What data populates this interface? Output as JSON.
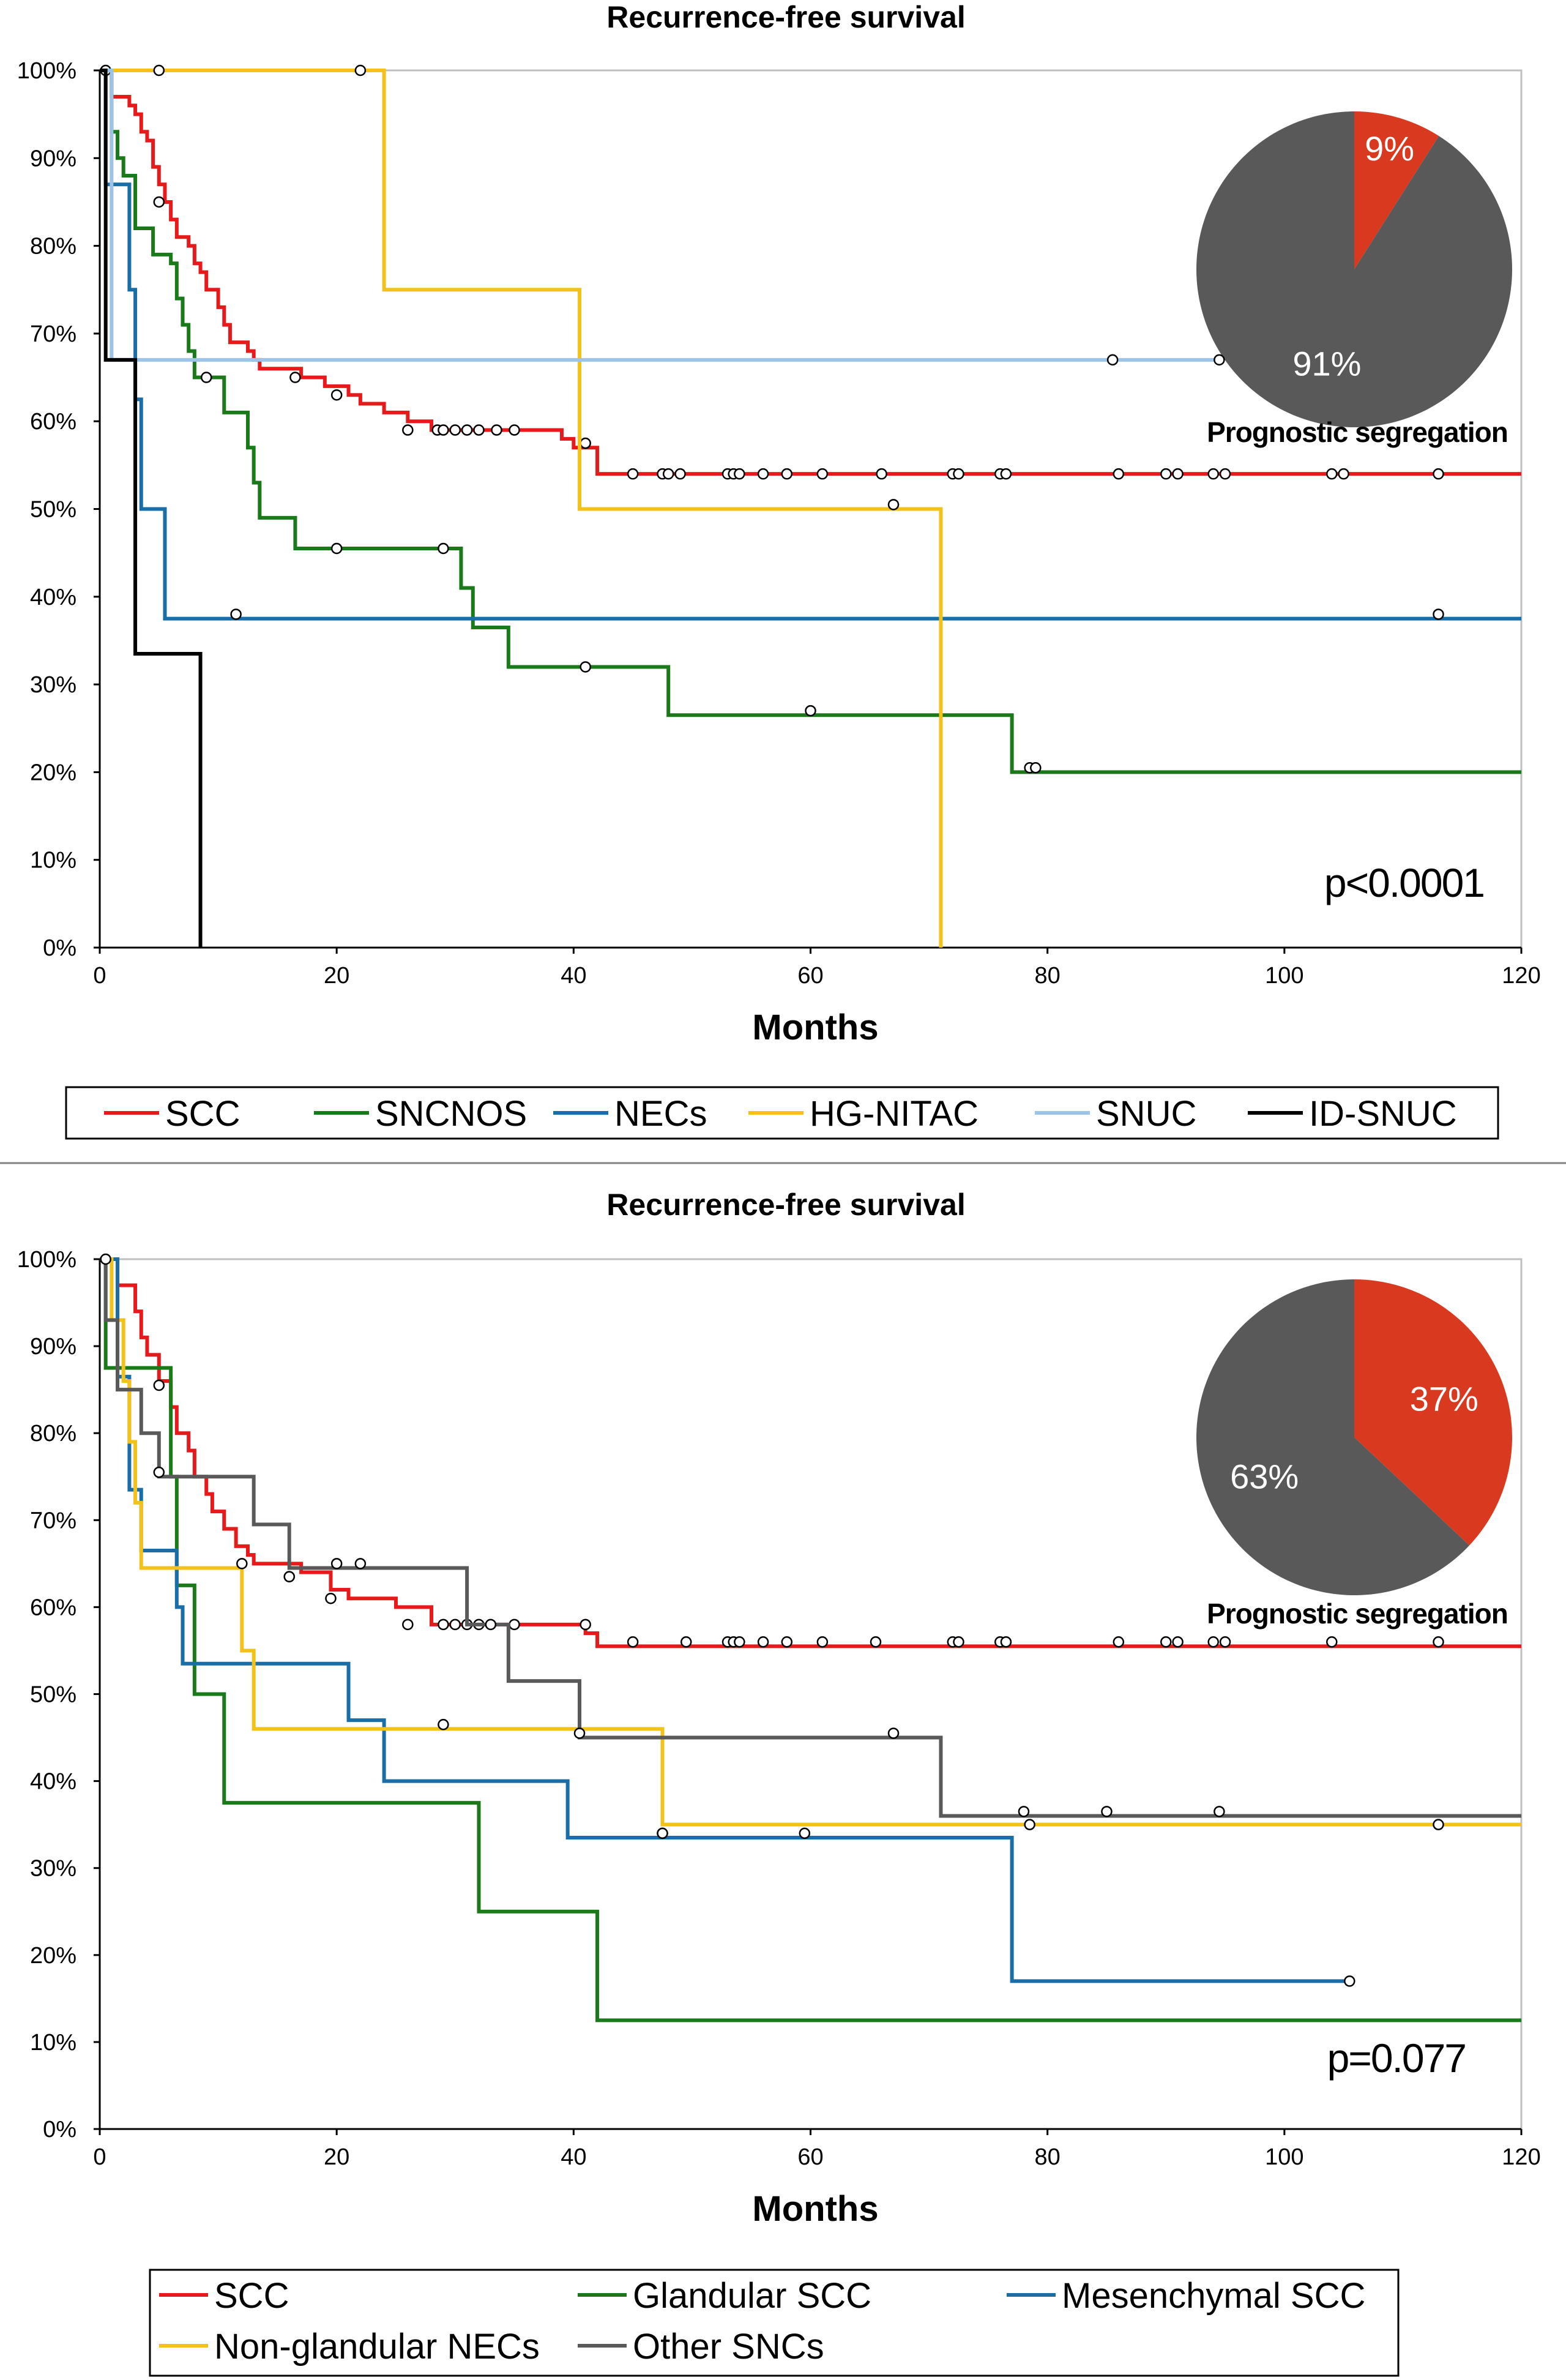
{
  "chart_data": [
    {
      "type": "line",
      "subtype": "kaplan-meier step",
      "title": "Recurrence-free survival",
      "xlabel": "Months",
      "ylabel": "",
      "xlim": [
        0,
        120
      ],
      "ylim": [
        0,
        100
      ],
      "x_ticks": [
        0,
        20,
        40,
        60,
        80,
        100,
        120
      ],
      "y_ticks": [
        "0%",
        "10%",
        "20%",
        "30%",
        "40%",
        "50%",
        "60%",
        "70%",
        "80%",
        "90%",
        "100%"
      ],
      "p_value": "p<0.0001",
      "pie": {
        "caption": "Prognostic segregation",
        "slices": [
          {
            "label": "9%",
            "value": 9,
            "color": "#d9391f"
          },
          {
            "label": "91%",
            "value": 91,
            "color": "#595959"
          }
        ]
      },
      "legend": [
        "SCC",
        "SNCNOS",
        "NECs",
        "HG-NITAC",
        "SNUC",
        "ID-SNUC"
      ],
      "series": [
        {
          "name": "SCC",
          "color": "#e8191b",
          "steps": [
            [
              0,
              100
            ],
            [
              1,
              97
            ],
            [
              2.5,
              96
            ],
            [
              3,
              95
            ],
            [
              3.5,
              93
            ],
            [
              4,
              92
            ],
            [
              4.5,
              89
            ],
            [
              5,
              87
            ],
            [
              5.5,
              85
            ],
            [
              6,
              83
            ],
            [
              6.5,
              81
            ],
            [
              7.5,
              80
            ],
            [
              8,
              78
            ],
            [
              8.5,
              77
            ],
            [
              9,
              75
            ],
            [
              10,
              73
            ],
            [
              10.5,
              71
            ],
            [
              11,
              69
            ],
            [
              12.5,
              68
            ],
            [
              13,
              67
            ],
            [
              13.5,
              66
            ],
            [
              17,
              65
            ],
            [
              19,
              64
            ],
            [
              21,
              63
            ],
            [
              22,
              62
            ],
            [
              24,
              61
            ],
            [
              26,
              60
            ],
            [
              28,
              59
            ],
            [
              39,
              58
            ],
            [
              40,
              57
            ],
            [
              42,
              54
            ],
            [
              120,
              54
            ]
          ],
          "censor": [
            [
              5,
              85
            ],
            [
              16.5,
              65
            ],
            [
              20,
              63
            ],
            [
              26,
              59
            ],
            [
              28.5,
              59
            ],
            [
              29,
              59
            ],
            [
              30,
              59
            ],
            [
              31,
              59
            ],
            [
              32,
              59
            ],
            [
              33.5,
              59
            ],
            [
              35,
              59
            ],
            [
              41,
              57.5
            ],
            [
              45,
              54
            ],
            [
              47.5,
              54
            ],
            [
              48,
              54
            ],
            [
              49,
              54
            ],
            [
              53,
              54
            ],
            [
              53.5,
              54
            ],
            [
              54,
              54
            ],
            [
              56,
              54
            ],
            [
              58,
              54
            ],
            [
              61,
              54
            ],
            [
              66,
              54
            ],
            [
              72,
              54
            ],
            [
              72.5,
              54
            ],
            [
              76,
              54
            ],
            [
              76.5,
              54
            ],
            [
              86,
              54
            ],
            [
              90,
              54
            ],
            [
              91,
              54
            ],
            [
              94,
              54
            ],
            [
              95,
              54
            ],
            [
              104,
              54
            ],
            [
              105,
              54
            ],
            [
              113,
              54
            ]
          ]
        },
        {
          "name": "SNCNOS",
          "color": "#1a7a1a",
          "steps": [
            [
              0,
              100
            ],
            [
              1,
              93
            ],
            [
              1.5,
              90
            ],
            [
              2,
              88
            ],
            [
              3,
              82
            ],
            [
              4.5,
              79
            ],
            [
              6,
              78
            ],
            [
              6.5,
              74
            ],
            [
              7,
              71
            ],
            [
              7.5,
              68
            ],
            [
              8,
              65
            ],
            [
              10.5,
              61
            ],
            [
              12.5,
              57
            ],
            [
              13,
              53
            ],
            [
              13.5,
              49
            ],
            [
              16.5,
              45.5
            ],
            [
              30.5,
              41
            ],
            [
              31.5,
              36.5
            ],
            [
              34.5,
              32
            ],
            [
              48,
              26.5
            ],
            [
              77,
              20
            ],
            [
              120,
              20
            ]
          ],
          "censor": [
            [
              9,
              65
            ],
            [
              20,
              45.5
            ],
            [
              29,
              45.5
            ],
            [
              41,
              32
            ],
            [
              60,
              27
            ],
            [
              78.5,
              20.5
            ],
            [
              79,
              20.5
            ]
          ]
        },
        {
          "name": "NECs",
          "color": "#1a6ea8",
          "steps": [
            [
              0,
              100
            ],
            [
              0.5,
              87
            ],
            [
              2,
              87
            ],
            [
              2.5,
              75
            ],
            [
              3,
              62.5
            ],
            [
              3.5,
              50
            ],
            [
              5.5,
              37.5
            ],
            [
              120,
              37.5
            ]
          ],
          "censor": [
            [
              11.5,
              38
            ],
            [
              113,
              38
            ]
          ]
        },
        {
          "name": "HG-NITAC",
          "color": "#f2c21b",
          "steps": [
            [
              0,
              100
            ],
            [
              24,
              75
            ],
            [
              40.5,
              50
            ],
            [
              71,
              0
            ]
          ],
          "censor": [
            [
              0.5,
              100
            ],
            [
              5,
              100
            ],
            [
              22,
              100
            ],
            [
              67,
              50.5
            ]
          ]
        },
        {
          "name": "SNUC",
          "color": "#9dc3e6",
          "steps": [
            [
              0,
              100
            ],
            [
              1,
              67
            ],
            [
              94.5,
              67
            ]
          ],
          "censor": [
            [
              85.5,
              67
            ],
            [
              94.5,
              67
            ]
          ]
        },
        {
          "name": "ID-SNUC",
          "color": "#000000",
          "steps": [
            [
              0,
              100
            ],
            [
              0.5,
              67
            ],
            [
              3,
              33.5
            ],
            [
              8.5,
              0
            ]
          ],
          "censor": []
        }
      ]
    },
    {
      "type": "line",
      "subtype": "kaplan-meier step",
      "title": "Recurrence-free survival",
      "xlabel": "Months",
      "ylabel": "",
      "xlim": [
        0,
        120
      ],
      "ylim": [
        0,
        100
      ],
      "x_ticks": [
        0,
        20,
        40,
        60,
        80,
        100,
        120
      ],
      "y_ticks": [
        "0%",
        "10%",
        "20%",
        "30%",
        "40%",
        "50%",
        "60%",
        "70%",
        "80%",
        "90%",
        "100%"
      ],
      "p_value": "p=0.077",
      "pie": {
        "caption": "Prognostic segregation",
        "slices": [
          {
            "label": "37%",
            "value": 37,
            "color": "#d9391f"
          },
          {
            "label": "63%",
            "value": 63,
            "color": "#595959"
          }
        ]
      },
      "legend": [
        "SCC",
        "Glandular SCC",
        "Mesenchymal SCC",
        "Non-glandular NECs",
        "Other SNCs"
      ],
      "series": [
        {
          "name": "SCC",
          "color": "#e8191b",
          "steps": [
            [
              0,
              100
            ],
            [
              1.5,
              97
            ],
            [
              3,
              94
            ],
            [
              3.5,
              91
            ],
            [
              4,
              89
            ],
            [
              5,
              86
            ],
            [
              6,
              83
            ],
            [
              6.5,
              80
            ],
            [
              7.5,
              78
            ],
            [
              8,
              75
            ],
            [
              9,
              73
            ],
            [
              9.5,
              71
            ],
            [
              10.5,
              69
            ],
            [
              11.5,
              67
            ],
            [
              12.5,
              66
            ],
            [
              13,
              65
            ],
            [
              17,
              64
            ],
            [
              19.5,
              62
            ],
            [
              21,
              61
            ],
            [
              25,
              60
            ],
            [
              28,
              58
            ],
            [
              41,
              57
            ],
            [
              42,
              55.5
            ],
            [
              120,
              55.5
            ]
          ],
          "censor": [
            [
              5,
              85.5
            ],
            [
              16,
              63.5
            ],
            [
              19.5,
              61
            ],
            [
              26,
              58
            ],
            [
              29,
              58
            ],
            [
              30,
              58
            ],
            [
              31,
              58
            ],
            [
              32,
              58
            ],
            [
              35,
              58
            ],
            [
              41,
              58
            ],
            [
              45,
              56
            ],
            [
              49.5,
              56
            ],
            [
              53,
              56
            ],
            [
              53.5,
              56
            ],
            [
              54,
              56
            ],
            [
              56,
              56
            ],
            [
              58,
              56
            ],
            [
              61,
              56
            ],
            [
              65.5,
              56
            ],
            [
              72,
              56
            ],
            [
              72.5,
              56
            ],
            [
              76,
              56
            ],
            [
              76.5,
              56
            ],
            [
              86,
              56
            ],
            [
              90,
              56
            ],
            [
              91,
              56
            ],
            [
              94,
              56
            ],
            [
              95,
              56
            ],
            [
              104,
              56
            ],
            [
              113,
              56
            ]
          ]
        },
        {
          "name": "Glandular SCC",
          "color": "#1a7a1a",
          "steps": [
            [
              0,
              100
            ],
            [
              0.5,
              87.5
            ],
            [
              6,
              75
            ],
            [
              6.5,
              62.5
            ],
            [
              8,
              50
            ],
            [
              10.5,
              37.5
            ],
            [
              32,
              25
            ],
            [
              42,
              12.5
            ],
            [
              120,
              12.5
            ]
          ],
          "censor": []
        },
        {
          "name": "Mesenchymal SCC",
          "color": "#1a6ea8",
          "steps": [
            [
              0,
              100
            ],
            [
              1.5,
              86.5
            ],
            [
              2.5,
              73.5
            ],
            [
              3.5,
              66.5
            ],
            [
              6.5,
              60
            ],
            [
              7,
              53.5
            ],
            [
              21,
              47
            ],
            [
              24,
              40
            ],
            [
              39.5,
              33.5
            ],
            [
              77,
              17
            ],
            [
              105.5,
              17
            ]
          ],
          "censor": [
            [
              47.5,
              34
            ],
            [
              105.5,
              17
            ]
          ]
        },
        {
          "name": "Non-glandular NECs",
          "color": "#f2c21b",
          "steps": [
            [
              0,
              100
            ],
            [
              1,
              93
            ],
            [
              2,
              86
            ],
            [
              2.5,
              79
            ],
            [
              3,
              72
            ],
            [
              3.5,
              64.5
            ],
            [
              12,
              55
            ],
            [
              13,
              46
            ],
            [
              47.5,
              35
            ],
            [
              120,
              35
            ]
          ],
          "censor": [
            [
              29,
              46.5
            ],
            [
              47.5,
              34
            ],
            [
              59.5,
              34
            ],
            [
              78.5,
              35
            ],
            [
              113,
              35
            ]
          ]
        },
        {
          "name": "Other SNCs",
          "color": "#595959",
          "steps": [
            [
              0,
              100
            ],
            [
              0.5,
              93
            ],
            [
              1.5,
              85
            ],
            [
              3.5,
              80
            ],
            [
              5,
              75
            ],
            [
              13,
              69.5
            ],
            [
              16,
              64.5
            ],
            [
              31,
              58
            ],
            [
              34.5,
              51.5
            ],
            [
              40.5,
              45
            ],
            [
              71,
              36
            ],
            [
              120,
              36
            ]
          ],
          "censor": [
            [
              0.5,
              100
            ],
            [
              5,
              75.5
            ],
            [
              12,
              65
            ],
            [
              16,
              63.5
            ],
            [
              20,
              65
            ],
            [
              22,
              65
            ],
            [
              33,
              58
            ],
            [
              40.5,
              45.5
            ],
            [
              67,
              45.5
            ],
            [
              78,
              36.5
            ],
            [
              85,
              36.5
            ],
            [
              94.5,
              36.5
            ]
          ]
        }
      ]
    }
  ]
}
